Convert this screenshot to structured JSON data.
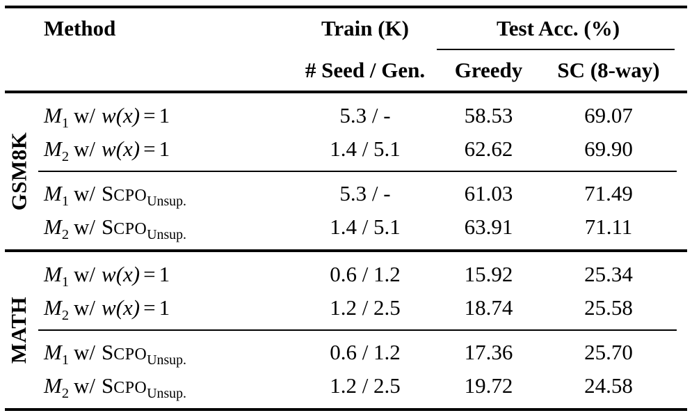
{
  "colors": {
    "text": "#000000",
    "background": "#ffffff",
    "rule": "#000000"
  },
  "header": {
    "method": "Method",
    "train": "Train (K)",
    "test_acc": "Test Acc. (%)",
    "seed_gen": "# Seed / Gen.",
    "greedy": "Greedy",
    "sc": "SC (8-way)"
  },
  "sections": [
    {
      "label": "GSM8K",
      "groups": [
        {
          "rows": [
            {
              "m": "M",
              "sub": "1",
              "mid": "w/",
              "wexpr": "w(x)",
              "eq": "=",
              "val": "1",
              "train": "5.3 / -",
              "greedy": "58.53",
              "sc": "69.07"
            },
            {
              "m": "M",
              "sub": "2",
              "mid": "w/",
              "wexpr": "w(x)",
              "eq": "=",
              "val": "1",
              "train": "1.4 / 5.1",
              "greedy": "62.62",
              "sc": "69.90"
            }
          ]
        },
        {
          "rows": [
            {
              "m": "M",
              "sub": "1",
              "mid": "w/",
              "sc_head": "S",
              "sc_rest": "CPO",
              "sc_sub": "Unsup.",
              "train": "5.3 / -",
              "greedy": "61.03",
              "sc": "71.49"
            },
            {
              "m": "M",
              "sub": "2",
              "mid": "w/",
              "sc_head": "S",
              "sc_rest": "CPO",
              "sc_sub": "Unsup.",
              "train": "1.4 / 5.1",
              "greedy": "63.91",
              "sc": "71.11"
            }
          ]
        }
      ]
    },
    {
      "label": "MATH",
      "groups": [
        {
          "rows": [
            {
              "m": "M",
              "sub": "1",
              "mid": "w/",
              "wexpr": "w(x)",
              "eq": "=",
              "val": "1",
              "train": "0.6 / 1.2",
              "greedy": "15.92",
              "sc": "25.34"
            },
            {
              "m": "M",
              "sub": "2",
              "mid": "w/",
              "wexpr": "w(x)",
              "eq": "=",
              "val": "1",
              "train": "1.2 / 2.5",
              "greedy": "18.74",
              "sc": "25.58"
            }
          ]
        },
        {
          "rows": [
            {
              "m": "M",
              "sub": "1",
              "mid": "w/",
              "sc_head": "S",
              "sc_rest": "CPO",
              "sc_sub": "Unsup.",
              "train": "0.6 / 1.2",
              "greedy": "17.36",
              "sc": "25.70"
            },
            {
              "m": "M",
              "sub": "2",
              "mid": "w/",
              "sc_head": "S",
              "sc_rest": "CPO",
              "sc_sub": "Unsup.",
              "train": "1.2 / 2.5",
              "greedy": "19.72",
              "sc": "24.58"
            }
          ]
        }
      ]
    }
  ]
}
